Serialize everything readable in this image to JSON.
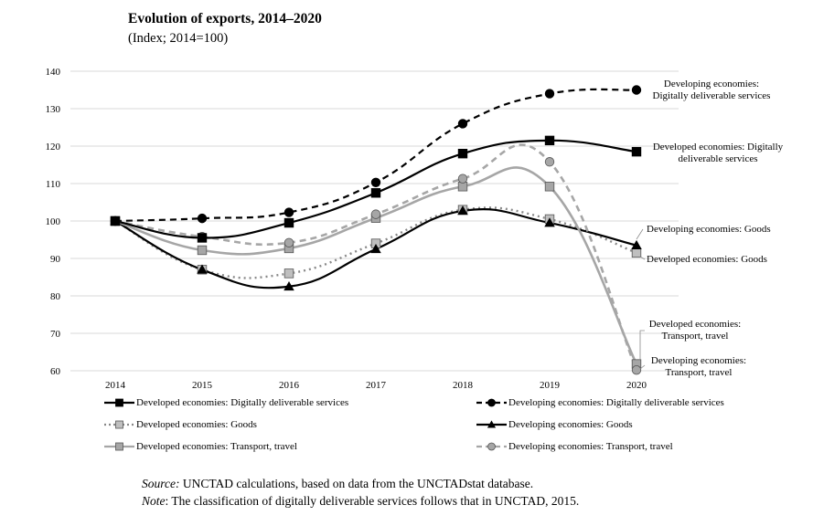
{
  "chart_data": {
    "type": "line",
    "title": "Evolution of exports, 2014–2020",
    "subtitle": "(Index; 2014=100)",
    "xlabel": "",
    "ylabel": "",
    "x": [
      "2014",
      "2015",
      "2016",
      "2017",
      "2018",
      "2019",
      "2020"
    ],
    "ylim": [
      60,
      140
    ],
    "yticks": [
      "60",
      "70",
      "80",
      "90",
      "100",
      "110",
      "120",
      "130",
      "140"
    ],
    "grid": true,
    "series": [
      {
        "id": "dev_dds",
        "name": "Developed economies: Digitally deliverable services",
        "values": [
          100,
          95.5,
          99.5,
          107.5,
          118,
          121.5,
          118.5
        ],
        "color": "#000000",
        "dash": "",
        "marker": "square",
        "marker_fill": "#000000"
      },
      {
        "id": "dvg_dds",
        "name": "Developing economies: Digitally deliverable services",
        "values": [
          100,
          100.7,
          102.3,
          110.3,
          126,
          134,
          135
        ],
        "color": "#000000",
        "dash": "7,5",
        "marker": "circle",
        "marker_fill": "#000000"
      },
      {
        "id": "dev_goods",
        "name": "Developed economies: Goods",
        "values": [
          100,
          87,
          86,
          94,
          103,
          100.5,
          91.5
        ],
        "color": "#888888",
        "dash": "2,4",
        "marker": "square",
        "marker_fill": "#bfbfbf"
      },
      {
        "id": "dvg_goods",
        "name": "Developing economies: Goods",
        "values": [
          100,
          87,
          82.5,
          92.5,
          102.7,
          99.5,
          93.5
        ],
        "color": "#000000",
        "dash": "",
        "marker": "triangle",
        "marker_fill": "#000000"
      },
      {
        "id": "dev_tt",
        "name": "Developed economies: Transport, travel",
        "values": [
          100,
          92.2,
          92.7,
          100.8,
          109.2,
          109.2,
          61.8
        ],
        "color": "#a6a6a6",
        "dash": "",
        "marker": "square",
        "marker_fill": "#a6a6a6"
      },
      {
        "id": "dvg_tt",
        "name": "Developing economies: Transport, travel",
        "values": [
          100,
          95.8,
          94.2,
          101.8,
          111.3,
          115.8,
          60.2
        ],
        "color": "#a6a6a6",
        "dash": "7,5",
        "marker": "circle",
        "marker_fill": "#a6a6a6"
      }
    ],
    "annotations": [
      {
        "series": "dvg_dds",
        "lines": [
          "Developing economies:",
          "Digitally deliverable services"
        ]
      },
      {
        "series": "dev_dds",
        "lines": [
          "Developed economies: Digitally",
          "deliverable services"
        ]
      },
      {
        "series": "dvg_goods",
        "lines": [
          "Developing economies: Goods"
        ]
      },
      {
        "series": "dev_goods",
        "lines": [
          "Developed economies: Goods"
        ]
      },
      {
        "series": "dev_tt",
        "lines": [
          "Developed economies:",
          "Transport, travel"
        ]
      },
      {
        "series": "dvg_tt",
        "lines": [
          "Developing economies:",
          "Transport, travel"
        ]
      }
    ]
  },
  "legend": {
    "dev_dds": "Developed economies: Digitally deliverable services",
    "dvg_dds": "Developing economies: Digitally deliverable services",
    "dev_goods": "Developed economies: Goods",
    "dvg_goods": "Developing economies: Goods",
    "dev_tt": "Developed economies: Transport, travel",
    "dvg_tt": "Developing economies: Transport, travel"
  },
  "footer": {
    "source_label": "Source:",
    "source_text": " UNCTAD calculations, based on data from the UNCTADstat database.",
    "note_label": "Note",
    "note_text": ": The classification of digitally deliverable services follows that in UNCTAD, 2015."
  }
}
